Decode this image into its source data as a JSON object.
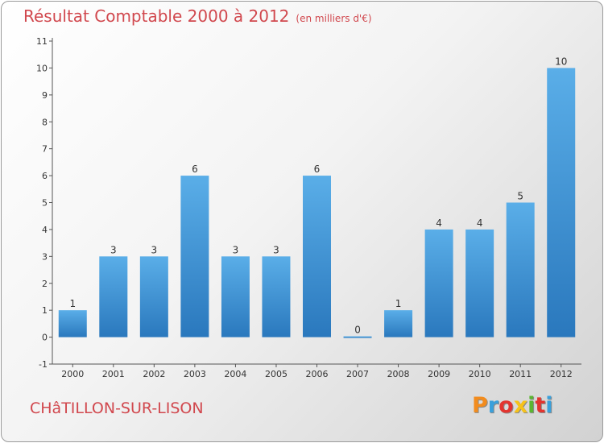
{
  "title": "Résultat Comptable 2000 à 2012",
  "subtitle": "(en milliers d'€)",
  "location": "CHâTILLON-SUR-LISON",
  "logo": {
    "text": "Proxiti",
    "letters": [
      {
        "ch": "P",
        "color": "#f28c1e"
      },
      {
        "ch": "r",
        "color": "#3aa0db"
      },
      {
        "ch": "o",
        "color": "#e3342f"
      },
      {
        "ch": "x",
        "color": "#f6c21a"
      },
      {
        "ch": "i",
        "color": "#5bb531"
      },
      {
        "ch": "t",
        "color": "#e3342f"
      },
      {
        "ch": "i",
        "color": "#3aa0db"
      }
    ]
  },
  "chart_data": {
    "type": "bar",
    "categories": [
      "2000",
      "2001",
      "2002",
      "2003",
      "2004",
      "2005",
      "2006",
      "2007",
      "2008",
      "2009",
      "2010",
      "2011",
      "2012"
    ],
    "values": [
      1,
      3,
      3,
      6,
      3,
      3,
      6,
      0,
      1,
      4,
      4,
      5,
      10
    ],
    "data_labels": [
      "1",
      "3",
      "3",
      "6",
      "3",
      "3",
      "6",
      "0",
      "1",
      "4",
      "4",
      "5",
      "10"
    ],
    "ylim": [
      -1,
      11
    ],
    "yticks": [
      -1,
      0,
      1,
      2,
      3,
      4,
      5,
      6,
      7,
      8,
      9,
      10,
      11
    ],
    "xlabel": "",
    "ylabel": "",
    "grid": false,
    "legend": "none",
    "bar_color": "#3a8fd6",
    "bar_color_light": "#5aaee8",
    "bar_color_dark": "#2a78bd"
  }
}
